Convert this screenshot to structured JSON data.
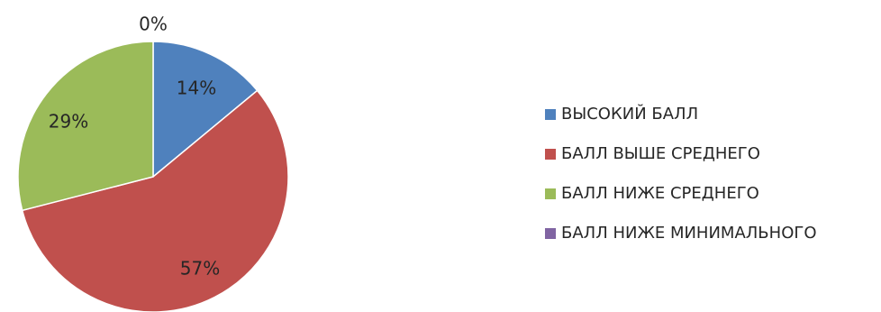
{
  "chart_data": {
    "type": "pie",
    "categories": [
      "ВЫСОКИЙ БАЛЛ",
      "БАЛЛ ВЫШЕ СРЕДНЕГО",
      "БАЛЛ НИЖЕ СРЕДНЕГО",
      "БАЛЛ НИЖЕ МИНИМАЛЬНОГО"
    ],
    "values": [
      14,
      57,
      29,
      0
    ],
    "data_labels": [
      "14%",
      "57%",
      "29%",
      "0%"
    ],
    "colors": [
      "#4f81bd",
      "#c0504d",
      "#9bbb59",
      "#8064a2"
    ],
    "legend_position": "right",
    "start_angle": "top, clockwise"
  }
}
